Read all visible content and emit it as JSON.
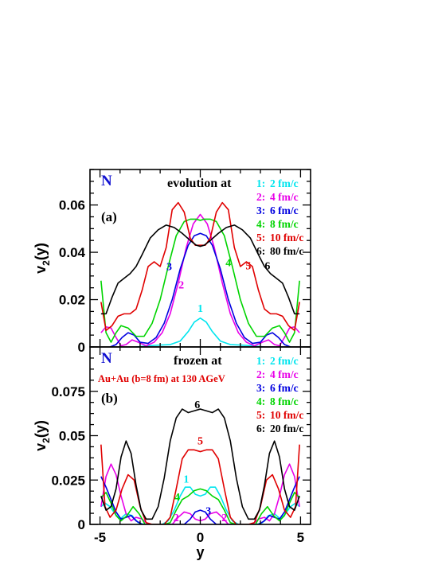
{
  "colors": {
    "1": "#00e5ee",
    "2": "#e800e8",
    "3": "#0000e0",
    "4": "#00d400",
    "5": "#e00000",
    "6": "#000000",
    "marker": "#1010d0",
    "collision": "#e00000"
  },
  "x_axis": {
    "label": "y",
    "tick_labels": [
      "-5",
      "0",
      "5"
    ],
    "ticks": [
      -5,
      0,
      5
    ],
    "range": [
      -5.5,
      5.5
    ]
  },
  "chart_data": [
    {
      "type": "line",
      "panel_label": "(a)",
      "marker": "N",
      "header": "evolution at",
      "ylabel": "v2(y)",
      "ylabel_main": "v",
      "ylabel_sub": "2",
      "ylabel_tail": "(y)",
      "ylim": [
        0,
        0.075
      ],
      "yticks": [
        0,
        0.02,
        0.04,
        0.06
      ],
      "ytick_labels": [
        "0",
        "0.02",
        "0.04",
        "0.06"
      ],
      "legend": [
        {
          "id": "1",
          "num": "1:",
          "text": "2 fm/c"
        },
        {
          "id": "2",
          "num": "2:",
          "text": "4 fm/c"
        },
        {
          "id": "3",
          "num": "3:",
          "text": "6 fm/c"
        },
        {
          "id": "4",
          "num": "4:",
          "text": "8 fm/c"
        },
        {
          "id": "5",
          "num": "5:",
          "text": "10 fm/c"
        },
        {
          "id": "6",
          "num": "6:",
          "text": "80 fm/c"
        }
      ],
      "curve_labels": [
        {
          "id": "1",
          "text": "1",
          "x": 0.0,
          "y": 0.0148
        },
        {
          "id": "2",
          "text": "2",
          "x": -0.95,
          "y": 0.0248
        },
        {
          "id": "3",
          "text": "3",
          "x": -1.55,
          "y": 0.0325
        },
        {
          "id": "4",
          "text": "4",
          "x": 1.4,
          "y": 0.0342
        },
        {
          "id": "5",
          "text": "5",
          "x": 2.4,
          "y": 0.0328
        },
        {
          "id": "6",
          "text": "6",
          "x": 3.35,
          "y": 0.0328
        }
      ],
      "series": [
        {
          "id": "1",
          "x": [
            -3.2,
            -2.6,
            -2.0,
            -1.5,
            -1.0,
            -0.6,
            -0.3,
            0.0,
            0.3,
            0.6,
            1.0,
            1.5,
            2.0,
            2.6,
            3.2
          ],
          "y": [
            0,
            0.0005,
            0.0008,
            0.001,
            0.0025,
            0.0065,
            0.0105,
            0.0122,
            0.0105,
            0.0065,
            0.0025,
            0.001,
            0.0008,
            0.0005,
            0
          ]
        },
        {
          "id": "2",
          "x": [
            -4.95,
            -4.7,
            -4.45,
            -4.2,
            -3.95,
            -3.7,
            -3.4,
            -3.1,
            -2.7,
            -2.3,
            -1.9,
            -1.5,
            -1.1,
            -0.7,
            -0.35,
            0.0,
            0.35,
            0.7,
            1.1,
            1.5,
            1.9,
            2.3,
            2.7,
            3.1,
            3.4,
            3.7,
            3.95,
            4.2,
            4.45,
            4.7,
            4.95
          ],
          "y": [
            0.006,
            0.0085,
            0.008,
            0.004,
            0.0005,
            0.001,
            0.003,
            0.002,
            0.0005,
            0.002,
            0.006,
            0.014,
            0.027,
            0.042,
            0.052,
            0.056,
            0.052,
            0.042,
            0.027,
            0.014,
            0.006,
            0.002,
            0.0005,
            0.002,
            0.003,
            0.001,
            0.0005,
            0.004,
            0.008,
            0.0085,
            0.006
          ]
        },
        {
          "id": "3",
          "x": [
            -4.5,
            -4.2,
            -3.9,
            -3.6,
            -3.3,
            -3.0,
            -2.6,
            -2.2,
            -1.8,
            -1.4,
            -1.0,
            -0.6,
            -0.3,
            0.0,
            0.3,
            0.6,
            1.0,
            1.4,
            1.8,
            2.2,
            2.6,
            3.0,
            3.3,
            3.6,
            3.9,
            4.2,
            4.5
          ],
          "y": [
            0.0,
            0.001,
            0.004,
            0.006,
            0.005,
            0.002,
            0.0015,
            0.004,
            0.01,
            0.02,
            0.033,
            0.043,
            0.047,
            0.048,
            0.047,
            0.043,
            0.033,
            0.02,
            0.01,
            0.004,
            0.0015,
            0.002,
            0.005,
            0.006,
            0.004,
            0.001,
            0.0
          ]
        },
        {
          "id": "4",
          "x": [
            -4.95,
            -4.7,
            -4.45,
            -4.2,
            -3.95,
            -3.6,
            -3.2,
            -2.8,
            -2.4,
            -2.0,
            -1.6,
            -1.2,
            -0.8,
            -0.5,
            -0.2,
            0.0,
            0.2,
            0.5,
            0.8,
            1.2,
            1.6,
            2.0,
            2.4,
            2.8,
            3.2,
            3.6,
            3.95,
            4.2,
            4.45,
            4.7,
            4.95
          ],
          "y": [
            0.028,
            0.006,
            0.002,
            0.006,
            0.009,
            0.008,
            0.0045,
            0.0045,
            0.01,
            0.02,
            0.034,
            0.047,
            0.053,
            0.054,
            0.054,
            0.0535,
            0.054,
            0.054,
            0.053,
            0.047,
            0.034,
            0.02,
            0.01,
            0.0045,
            0.0045,
            0.008,
            0.009,
            0.006,
            0.002,
            0.006,
            0.028
          ]
        },
        {
          "id": "5",
          "x": [
            -4.95,
            -4.7,
            -4.4,
            -4.1,
            -3.8,
            -3.5,
            -3.2,
            -2.9,
            -2.6,
            -2.3,
            -2.0,
            -1.7,
            -1.4,
            -1.1,
            -0.8,
            -0.5,
            -0.25,
            0.0,
            0.25,
            0.5,
            0.8,
            1.1,
            1.4,
            1.7,
            2.0,
            2.3,
            2.6,
            2.9,
            3.2,
            3.5,
            3.8,
            4.1,
            4.4,
            4.7,
            4.95
          ],
          "y": [
            0.019,
            0.007,
            0.009,
            0.013,
            0.014,
            0.014,
            0.016,
            0.024,
            0.034,
            0.036,
            0.034,
            0.042,
            0.058,
            0.061,
            0.057,
            0.046,
            0.043,
            0.043,
            0.043,
            0.046,
            0.057,
            0.061,
            0.058,
            0.042,
            0.034,
            0.036,
            0.034,
            0.024,
            0.016,
            0.014,
            0.014,
            0.013,
            0.009,
            0.007,
            0.019
          ]
        },
        {
          "id": "6",
          "x": [
            -4.95,
            -4.7,
            -4.4,
            -4.1,
            -3.8,
            -3.5,
            -3.2,
            -2.9,
            -2.5,
            -2.1,
            -1.7,
            -1.3,
            -0.9,
            -0.5,
            -0.2,
            0.0,
            0.2,
            0.5,
            0.9,
            1.3,
            1.7,
            2.1,
            2.5,
            2.9,
            3.2,
            3.5,
            3.8,
            4.1,
            4.4,
            4.7,
            4.95
          ],
          "y": [
            0.014,
            0.014,
            0.021,
            0.027,
            0.029,
            0.031,
            0.034,
            0.039,
            0.046,
            0.0495,
            0.0515,
            0.0505,
            0.048,
            0.045,
            0.043,
            0.0425,
            0.043,
            0.045,
            0.048,
            0.0505,
            0.0515,
            0.0495,
            0.046,
            0.039,
            0.034,
            0.031,
            0.029,
            0.027,
            0.021,
            0.014,
            0.014
          ]
        }
      ]
    },
    {
      "type": "line",
      "panel_label": "(b)",
      "marker": "N",
      "header": "frozen at",
      "collision": "Au+Au (b=8 fm) at 130 AGeV",
      "ylabel": "v2(y)",
      "ylabel_main": "v",
      "ylabel_sub": "2",
      "ylabel_tail": "(y)",
      "ylim": [
        0,
        0.1
      ],
      "yticks": [
        0,
        0.025,
        0.05,
        0.075
      ],
      "ytick_labels": [
        "0",
        "0.025",
        "0.05",
        "0.075"
      ],
      "legend": [
        {
          "id": "1",
          "num": "1:",
          "text": "2 fm/c"
        },
        {
          "id": "2",
          "num": "2:",
          "text": "4 fm/c"
        },
        {
          "id": "3",
          "num": "3:",
          "text": "6 fm/c"
        },
        {
          "id": "4",
          "num": "4:",
          "text": "8 fm/c"
        },
        {
          "id": "5",
          "num": "5:",
          "text": "10 fm/c"
        },
        {
          "id": "6",
          "num": "6:",
          "text": "20 fm/c"
        }
      ],
      "curve_labels": [
        {
          "id": "1",
          "text": "1",
          "x": -0.7,
          "y": 0.0235
        },
        {
          "id": "2",
          "text": "2",
          "x": -1.2,
          "y": 0.0018
        },
        {
          "id": "2b",
          "text": "2",
          "x": 1.2,
          "y": 0.0018
        },
        {
          "id": "3",
          "text": "3",
          "x": 0.4,
          "y": 0.0055
        },
        {
          "id": "4",
          "text": "4",
          "x": -1.15,
          "y": 0.0135
        },
        {
          "id": "5",
          "text": "5",
          "x": 0.0,
          "y": 0.045
        },
        {
          "id": "6",
          "text": "6",
          "x": -0.15,
          "y": 0.0655
        }
      ],
      "series": [
        {
          "id": "1",
          "x": [
            -4.95,
            -4.75,
            -4.5,
            -4.25,
            -4.0,
            -3.7,
            -3.4,
            -3.1,
            -2.8,
            -2.5,
            -2.2,
            -1.9,
            -1.6,
            -1.3,
            -1.0,
            -0.75,
            -0.5,
            -0.25,
            0.0,
            0.25,
            0.5,
            0.75,
            1.0,
            1.3,
            1.6,
            1.9,
            2.2,
            2.5,
            2.8,
            3.1,
            3.4,
            3.7,
            4.0,
            4.25,
            4.5,
            4.75,
            4.95
          ],
          "y": [
            0.01,
            0.012,
            0.01,
            0.006,
            0.003,
            0.006,
            0.005,
            0.001,
            0.0,
            0.0,
            0.0,
            0.0,
            0.002,
            0.008,
            0.016,
            0.021,
            0.021,
            0.017,
            0.016,
            0.017,
            0.021,
            0.021,
            0.016,
            0.008,
            0.002,
            0.0,
            0.0,
            0.0,
            0.0,
            0.001,
            0.005,
            0.006,
            0.003,
            0.006,
            0.01,
            0.012,
            0.01
          ]
        },
        {
          "id": "2",
          "x": [
            -4.95,
            -4.7,
            -4.45,
            -4.2,
            -3.95,
            -3.7,
            -3.45,
            -3.2,
            -2.9,
            -2.6,
            -2.3,
            -2.0,
            -1.7,
            -1.4,
            -1.1,
            -0.8,
            -0.5,
            -0.25,
            0.0,
            0.25,
            0.5,
            0.8,
            1.1,
            1.4,
            1.7,
            2.0,
            2.3,
            2.6,
            2.9,
            3.2,
            3.45,
            3.7,
            3.95,
            4.2,
            4.45,
            4.7,
            4.95
          ],
          "y": [
            0.01,
            0.027,
            0.034,
            0.028,
            0.016,
            0.006,
            0.002,
            0.004,
            0.003,
            0.0,
            0.0,
            0.0,
            0.0,
            0.0,
            0.004,
            0.007,
            0.006,
            0.003,
            0.002,
            0.003,
            0.006,
            0.007,
            0.004,
            0.0,
            0.0,
            0.0,
            0.0,
            0.0,
            0.003,
            0.004,
            0.002,
            0.006,
            0.016,
            0.028,
            0.034,
            0.027,
            0.01
          ]
        },
        {
          "id": "3",
          "x": [
            -4.95,
            -4.7,
            -4.45,
            -4.2,
            -3.95,
            -3.7,
            -3.45,
            -3.2,
            -2.9,
            -2.6,
            -2.2,
            -1.8,
            -1.4,
            -1.1,
            -0.8,
            -0.5,
            -0.25,
            0.0,
            0.25,
            0.5,
            0.8,
            1.1,
            1.4,
            1.8,
            2.2,
            2.6,
            2.9,
            3.2,
            3.45,
            3.7,
            3.95,
            4.2,
            4.45,
            4.7,
            4.95
          ],
          "y": [
            0.027,
            0.021,
            0.014,
            0.007,
            0.003,
            0.004,
            0.005,
            0.002,
            0.0,
            0.0,
            0.0,
            0.0,
            0.0,
            0.0,
            0.0,
            0.003,
            0.007,
            0.008,
            0.007,
            0.003,
            0.0,
            0.0,
            0.0,
            0.0,
            0.0,
            0.0,
            0.0,
            0.002,
            0.005,
            0.004,
            0.003,
            0.007,
            0.014,
            0.021,
            0.027
          ]
        },
        {
          "id": "4",
          "x": [
            -4.95,
            -4.7,
            -4.45,
            -4.2,
            -3.95,
            -3.65,
            -3.35,
            -3.05,
            -2.75,
            -2.45,
            -2.1,
            -1.8,
            -1.5,
            -1.2,
            -0.9,
            -0.6,
            -0.3,
            0.0,
            0.3,
            0.6,
            0.9,
            1.2,
            1.5,
            1.8,
            2.1,
            2.45,
            2.75,
            3.05,
            3.35,
            3.65,
            3.95,
            4.2,
            4.45,
            4.7,
            4.95
          ],
          "y": [
            0.015,
            0.018,
            0.012,
            0.005,
            0.002,
            0.005,
            0.01,
            0.006,
            0.0,
            0.0,
            0.0,
            0.0,
            0.001,
            0.008,
            0.014,
            0.016,
            0.019,
            0.02,
            0.019,
            0.016,
            0.014,
            0.008,
            0.001,
            0.0,
            0.0,
            0.0,
            0.0,
            0.006,
            0.01,
            0.005,
            0.002,
            0.005,
            0.012,
            0.018,
            0.015
          ]
        },
        {
          "id": "5",
          "x": [
            -4.95,
            -4.75,
            -4.5,
            -4.2,
            -3.9,
            -3.6,
            -3.3,
            -3.0,
            -2.7,
            -2.4,
            -2.1,
            -1.8,
            -1.5,
            -1.2,
            -0.9,
            -0.6,
            -0.3,
            0.0,
            0.3,
            0.6,
            0.9,
            1.2,
            1.5,
            1.8,
            2.1,
            2.4,
            2.7,
            3.0,
            3.3,
            3.6,
            3.9,
            4.2,
            4.5,
            4.75,
            4.95
          ],
          "y": [
            0.045,
            0.01,
            0.004,
            0.008,
            0.02,
            0.028,
            0.025,
            0.01,
            0.001,
            0.0,
            0.0,
            0.0,
            0.004,
            0.02,
            0.037,
            0.042,
            0.042,
            0.041,
            0.042,
            0.042,
            0.037,
            0.02,
            0.004,
            0.0,
            0.0,
            0.0,
            0.001,
            0.01,
            0.025,
            0.028,
            0.02,
            0.008,
            0.004,
            0.01,
            0.045
          ]
        },
        {
          "id": "6",
          "x": [
            -4.95,
            -4.7,
            -4.45,
            -4.2,
            -3.95,
            -3.7,
            -3.45,
            -3.2,
            -2.95,
            -2.7,
            -2.4,
            -2.1,
            -1.8,
            -1.5,
            -1.2,
            -0.9,
            -0.6,
            -0.3,
            0.0,
            0.3,
            0.6,
            0.9,
            1.2,
            1.5,
            1.8,
            2.1,
            2.4,
            2.7,
            2.95,
            3.2,
            3.45,
            3.7,
            3.95,
            4.2,
            4.45,
            4.7,
            4.95
          ],
          "y": [
            0.016,
            0.008,
            0.01,
            0.02,
            0.038,
            0.047,
            0.04,
            0.022,
            0.008,
            0.003,
            0.003,
            0.01,
            0.026,
            0.047,
            0.06,
            0.065,
            0.063,
            0.064,
            0.065,
            0.064,
            0.063,
            0.065,
            0.06,
            0.047,
            0.026,
            0.01,
            0.003,
            0.003,
            0.008,
            0.022,
            0.04,
            0.047,
            0.038,
            0.02,
            0.01,
            0.008,
            0.016
          ]
        }
      ]
    }
  ]
}
